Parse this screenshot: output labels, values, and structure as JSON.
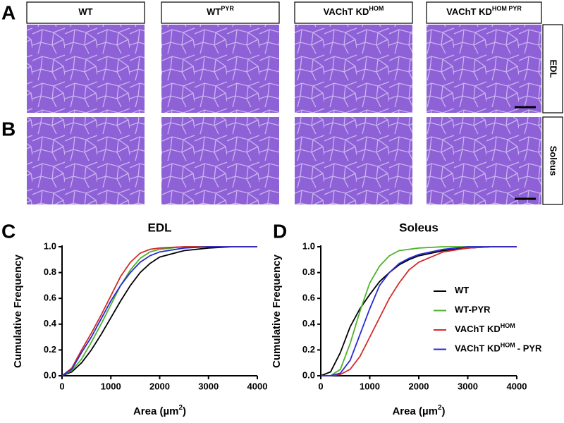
{
  "panel_letters": [
    "A",
    "B",
    "C",
    "D"
  ],
  "columns": [
    {
      "text": "WT"
    },
    {
      "text": "WT",
      "sup": "PYR"
    },
    {
      "text": "VAChT KD",
      "sup": "HOM"
    },
    {
      "text": "VAChT KD",
      "sup": "HOM PYR"
    }
  ],
  "rows": [
    "EDL",
    "Soleus"
  ],
  "chart_data": [
    {
      "type": "line",
      "title": "EDL",
      "y_label": "Cumulative Frequency",
      "x_label": "Area (µm",
      "x_label_sup": "2",
      "x_label_end": ")",
      "x": [
        0,
        200,
        400,
        600,
        800,
        1000,
        1200,
        1400,
        1600,
        1800,
        2000,
        2500,
        3000,
        3500,
        4000
      ],
      "xlim": [
        0,
        4000
      ],
      "xticks": [
        0,
        1000,
        2000,
        3000,
        4000
      ],
      "ylim": [
        0,
        1
      ],
      "yticks": [
        {
          "value": 0,
          "label": "0.0"
        },
        {
          "value": 0.2,
          "label": "0.2"
        },
        {
          "value": 0.4,
          "label": "0.4"
        },
        {
          "value": 0.6,
          "label": "0.6"
        },
        {
          "value": 0.8,
          "label": "0.8"
        },
        {
          "value": 1,
          "label": "1.0"
        }
      ],
      "series": [
        {
          "color": "#000000",
          "values": [
            0,
            0.03,
            0.1,
            0.2,
            0.32,
            0.45,
            0.58,
            0.7,
            0.8,
            0.87,
            0.92,
            0.97,
            0.99,
            1,
            1
          ]
        },
        {
          "color": "#4db32a",
          "values": [
            0,
            0.04,
            0.13,
            0.26,
            0.4,
            0.55,
            0.7,
            0.82,
            0.91,
            0.96,
            0.98,
            1,
            1,
            1,
            1
          ]
        },
        {
          "color": "#d42a2a",
          "values": [
            0,
            0.06,
            0.2,
            0.33,
            0.47,
            0.62,
            0.77,
            0.88,
            0.95,
            0.98,
            0.99,
            1,
            1,
            1,
            1
          ]
        },
        {
          "color": "#2a2ad4",
          "values": [
            0,
            0.05,
            0.18,
            0.3,
            0.44,
            0.58,
            0.7,
            0.8,
            0.88,
            0.93,
            0.96,
            0.99,
            1,
            1,
            1
          ]
        }
      ]
    },
    {
      "type": "line",
      "title": "Soleus",
      "y_label": "Cumulative Frequency",
      "x_label": "Area (µm",
      "x_label_sup": "2",
      "x_label_end": ")",
      "x": [
        0,
        200,
        400,
        600,
        800,
        1000,
        1200,
        1400,
        1600,
        1800,
        2000,
        2500,
        3000,
        3500,
        4000
      ],
      "xlim": [
        0,
        4000
      ],
      "xticks": [
        0,
        1000,
        2000,
        3000,
        4000
      ],
      "ylim": [
        0,
        1
      ],
      "yticks": [
        {
          "value": 0,
          "label": "0.0"
        },
        {
          "value": 0.2,
          "label": "0.2"
        },
        {
          "value": 0.4,
          "label": "0.4"
        },
        {
          "value": 0.6,
          "label": "0.6"
        },
        {
          "value": 0.8,
          "label": "0.8"
        },
        {
          "value": 1,
          "label": "1.0"
        }
      ],
      "legend": true,
      "series": [
        {
          "name": "WT",
          "color": "#000000",
          "values": [
            0,
            0.03,
            0.18,
            0.38,
            0.52,
            0.63,
            0.73,
            0.8,
            0.86,
            0.9,
            0.93,
            0.97,
            0.99,
            1,
            1
          ]
        },
        {
          "name": "WT-PYR",
          "color": "#4db32a",
          "values": [
            0,
            0,
            0.05,
            0.25,
            0.5,
            0.72,
            0.85,
            0.93,
            0.97,
            0.98,
            0.99,
            1,
            1,
            1,
            1
          ]
        },
        {
          "name": "VAChT KD",
          "name_sup": "HOM",
          "color": "#d42a2a",
          "values": [
            0,
            0,
            0.01,
            0.05,
            0.15,
            0.3,
            0.45,
            0.6,
            0.72,
            0.82,
            0.88,
            0.96,
            0.99,
            1,
            1
          ]
        },
        {
          "name": "VAChT KD",
          "name_sup": "HOM",
          "name_suffix": "- PYR",
          "color": "#2a2ad4",
          "values": [
            0,
            0,
            0.02,
            0.12,
            0.32,
            0.52,
            0.7,
            0.8,
            0.87,
            0.91,
            0.94,
            0.98,
            1,
            1,
            1
          ]
        }
      ]
    }
  ]
}
